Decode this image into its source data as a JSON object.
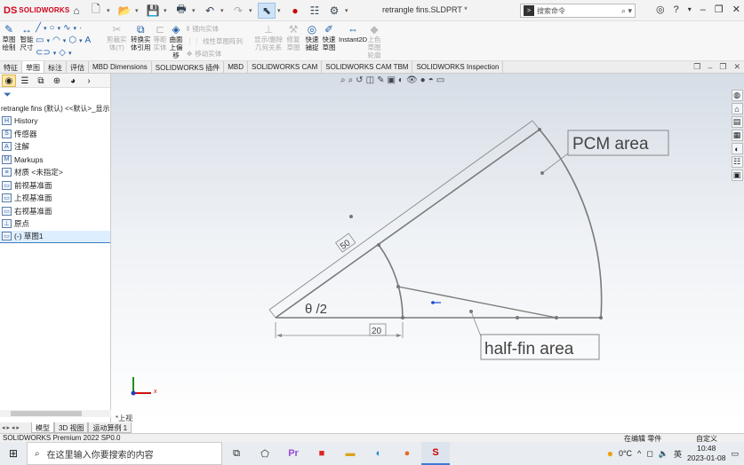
{
  "app": {
    "logo_ds": "DS",
    "logo_name": "SOLIDWORKS",
    "doc_title": "retrangle fins.SLDPRT *",
    "search_placeholder": "搜索命令"
  },
  "ribbon": {
    "sketch_draw": "草图\n绘制",
    "smart_dim": "智能\n尺寸",
    "trim_entity": "剪裁实\n体(T)",
    "convert_entity": "转换实\n体引用",
    "offset_entity": "等距\n实体",
    "surface_offset": "曲面\n上偏\n移",
    "mirror_entity": "镜向实体",
    "linear_pattern": "线性草图阵列",
    "move_entity": "移动实体",
    "show_delete_rel": "显示/删除\n几何关系",
    "repair_sketch": "修复\n草图",
    "quick_snap": "快速\n捕捉",
    "rapid_sketch": "快速\n草图",
    "instant2d": "Instant2D",
    "shaded_contour": "上色\n草图\n轮廓"
  },
  "tabs": [
    "特征",
    "草图",
    "标注",
    "评估",
    "MBD Dimensions",
    "SOLIDWORKS 插件",
    "MBD",
    "SOLIDWORKS CAM",
    "SOLIDWORKS CAM TBM",
    "SOLIDWORKS Inspection"
  ],
  "tree": {
    "root": "retrangle fins (默认) <<默认>_显示",
    "items": [
      {
        "label": "History",
        "icon": "H"
      },
      {
        "label": "传感器",
        "icon": "S"
      },
      {
        "label": "注解",
        "icon": "A"
      },
      {
        "label": "Markups",
        "icon": "M"
      },
      {
        "label": "材质 <未指定>",
        "icon": "≡"
      },
      {
        "label": "前视基准面",
        "icon": "▭"
      },
      {
        "label": "上视基准面",
        "icon": "▭"
      },
      {
        "label": "右视基准面",
        "icon": "▭"
      },
      {
        "label": "原点",
        "icon": "⊥"
      },
      {
        "label": "(-) 草图1",
        "icon": "▭"
      }
    ]
  },
  "sketch": {
    "label_pcm": "PCM area",
    "label_halffin": "half-fin area",
    "dim_50": "50",
    "dim_20": "20",
    "angle_label": "θ /2"
  },
  "view": {
    "orientation": "*上视",
    "bottom_tabs": [
      "模型",
      "3D 视图",
      "运动算例 1"
    ]
  },
  "status": {
    "product": "SOLIDWORKS Premium 2022 SP0.0",
    "editing": "在编辑 零件",
    "units": "自定义"
  },
  "taskbar": {
    "search_text": "在这里输入你要搜索的内容",
    "temperature": "0°C",
    "ime": "英",
    "time": "10:48",
    "date": "2023-01-08"
  }
}
